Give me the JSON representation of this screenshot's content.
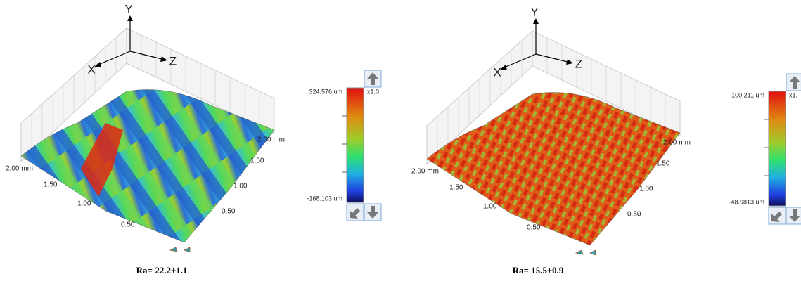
{
  "panels": [
    {
      "axes": {
        "y": "Y",
        "x": "X",
        "z": "Z"
      },
      "left_ticks": [
        "2.00 mm",
        "1.50",
        "1.00",
        "0.50"
      ],
      "right_ticks": [
        "2.00 mm",
        "1.50",
        "1.00",
        "0.50"
      ],
      "colorbar": {
        "max": "324.576 um",
        "min": "-168.103 um",
        "scale": "x1.0"
      },
      "caption": "Ra= 22.2±1.1"
    },
    {
      "axes": {
        "y": "Y",
        "x": "X",
        "z": "Z"
      },
      "left_ticks": [
        "2.00 mm",
        "1.50",
        "1.00",
        "0.50"
      ],
      "right_ticks": [
        "2.00 mm",
        "1.50",
        "1.00",
        "0.50"
      ],
      "colorbar": {
        "max": "100.211 um",
        "min": "-48.9813 um",
        "scale": "x1."
      },
      "caption": "Ra= 15.5±0.9"
    }
  ]
}
